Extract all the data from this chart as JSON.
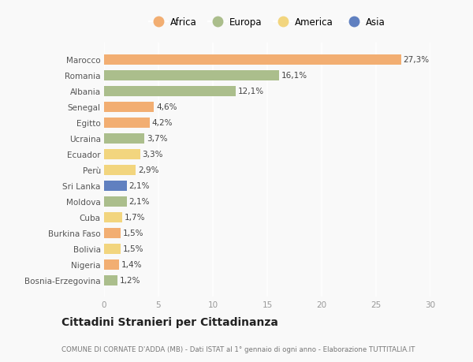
{
  "categories": [
    "Marocco",
    "Romania",
    "Albania",
    "Senegal",
    "Egitto",
    "Ucraina",
    "Ecuador",
    "Perù",
    "Sri Lanka",
    "Moldova",
    "Cuba",
    "Burkina Faso",
    "Bolivia",
    "Nigeria",
    "Bosnia-Erzegovina"
  ],
  "values": [
    27.3,
    16.1,
    12.1,
    4.6,
    4.2,
    3.7,
    3.3,
    2.9,
    2.1,
    2.1,
    1.7,
    1.5,
    1.5,
    1.4,
    1.2
  ],
  "labels": [
    "27,3%",
    "16,1%",
    "12,1%",
    "4,6%",
    "4,2%",
    "3,7%",
    "3,3%",
    "2,9%",
    "2,1%",
    "2,1%",
    "1,7%",
    "1,5%",
    "1,5%",
    "1,4%",
    "1,2%"
  ],
  "continents": [
    "Africa",
    "Europa",
    "Europa",
    "Africa",
    "Africa",
    "Europa",
    "America",
    "America",
    "Asia",
    "Europa",
    "America",
    "Africa",
    "America",
    "Africa",
    "Europa"
  ],
  "colors": {
    "Africa": "#F2AE72",
    "Europa": "#ABBE8C",
    "America": "#F2D57E",
    "Asia": "#6080C0"
  },
  "legend_order": [
    "Africa",
    "Europa",
    "America",
    "Asia"
  ],
  "title": "Cittadini Stranieri per Cittadinanza",
  "subtitle": "COMUNE DI CORNATE D'ADDA (MB) - Dati ISTAT al 1° gennaio di ogni anno - Elaborazione TUTTITALIA.IT",
  "xlim": [
    0,
    30
  ],
  "xticks": [
    0,
    5,
    10,
    15,
    20,
    25,
    30
  ],
  "bg_color": "#f9f9f9",
  "grid_color": "#ffffff",
  "bar_height": 0.65
}
